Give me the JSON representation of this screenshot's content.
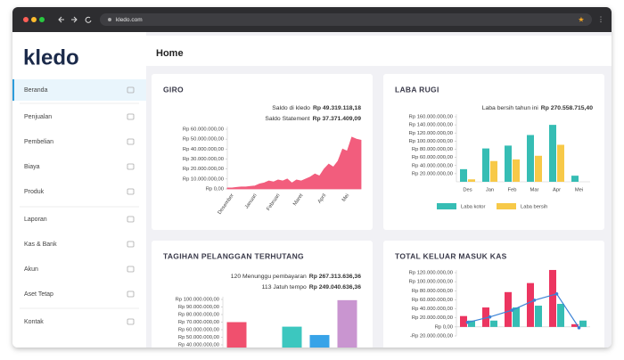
{
  "browser": {
    "url": "kledo.com"
  },
  "sidebar": {
    "logo": "kledo",
    "items": [
      "Beranda",
      "Penjualan",
      "Pembelian",
      "Biaya",
      "Produk",
      "Laporan",
      "Kas & Bank",
      "Akun",
      "Aset Tetap",
      "Kontak"
    ]
  },
  "header": {
    "title": "Home"
  },
  "cards": [
    {
      "title": "GIRO",
      "summary": [
        {
          "label": "Saldo di kledo",
          "value": "Rp 49.319.118,18"
        },
        {
          "label": "Saldo Statement",
          "value": "Rp 37.371.409,09"
        }
      ],
      "chart": {
        "type": "area",
        "color": "#f25d7d",
        "categories": [
          "Desember",
          null,
          null,
          null,
          null,
          "Januari",
          null,
          null,
          null,
          null,
          "Februari",
          null,
          null,
          null,
          null,
          "Maret",
          null,
          null,
          null,
          null,
          "April",
          null,
          null,
          null,
          null,
          "Mei",
          null,
          null,
          null,
          null
        ],
        "values": [
          1000000,
          1000000,
          1500000,
          2000000,
          2000000,
          2500000,
          3000000,
          5000000,
          6000000,
          8000000,
          7000000,
          9000000,
          8000000,
          10000000,
          6000000,
          9000000,
          8000000,
          10000000,
          12000000,
          15000000,
          13000000,
          20000000,
          25000000,
          22000000,
          28000000,
          40000000,
          38000000,
          52000000,
          50000000,
          49000000
        ],
        "ylim": [
          0,
          60000000
        ],
        "yticks": [
          {
            "value": 0,
            "label": "Rp 0,00"
          },
          {
            "value": 10000000,
            "label": "Rp 10.000.000,00"
          },
          {
            "value": 20000000,
            "label": "Rp 20.000.000,00"
          },
          {
            "value": 30000000,
            "label": "Rp 30.000.000,00"
          },
          {
            "value": 40000000,
            "label": "Rp 40.000.000,00"
          },
          {
            "value": 50000000,
            "label": "Rp 50.000.000,00"
          },
          {
            "value": 60000000,
            "label": "Rp 60.000.000,00"
          }
        ]
      }
    },
    {
      "title": "LABA RUGI",
      "summary": [
        {
          "label": "Laba bersih tahun ini",
          "value": "Rp 270.558.715,40"
        }
      ],
      "chart": {
        "type": "bar",
        "legend": "bottom",
        "categories": [
          "Des",
          "Jan",
          "Feb",
          "Mar",
          "Apr",
          "Mei"
        ],
        "series": [
          {
            "name": "Laba kotor",
            "color": "#36bdb4",
            "values": [
              31000000,
              82000000,
              89000000,
              115000000,
              140000000,
              15000000
            ]
          },
          {
            "name": "Laba bersih",
            "color": "#f7c948",
            "values": [
              6000000,
              51000000,
              55000000,
              64000000,
              91000000,
              0
            ]
          }
        ],
        "ylim": [
          0,
          160000000
        ],
        "yticks": [
          {
            "value": 20000000,
            "label": "Rp 20.000.000,00"
          },
          {
            "value": 40000000,
            "label": "Rp 40.000.000,00"
          },
          {
            "value": 60000000,
            "label": "Rp 60.000.000,00"
          },
          {
            "value": 80000000,
            "label": "Rp 80.000.000,00"
          },
          {
            "value": 100000000,
            "label": "Rp 100.000.000,00"
          },
          {
            "value": 120000000,
            "label": "Rp 120.000.000,00"
          },
          {
            "value": 140000000,
            "label": "Rp 140.000.000,00"
          },
          {
            "value": 160000000,
            "label": "Rp 160.000.000,00"
          }
        ]
      }
    },
    {
      "title": "TAGIHAN PELANGGAN TERHUTANG",
      "summary": [
        {
          "label": "120 Menunggu pembayaran",
          "value": "Rp 267.313.636,36"
        },
        {
          "label": "113 Jatuh tempo",
          "value": "Rp 249.040.636,36"
        }
      ],
      "chart": {
        "type": "bar",
        "values": [
          70000000,
          null,
          64000000,
          53000000,
          99000000
        ],
        "colors": [
          "#f0506e",
          null,
          "#3cc7bf",
          "#38a3e8",
          "#c995d0"
        ],
        "ylim": [
          0,
          100000000
        ],
        "yticks": [
          {
            "value": 40000000,
            "label": "Rp 40.000.000,00"
          },
          {
            "value": 50000000,
            "label": "Rp 50.000.000,00"
          },
          {
            "value": 60000000,
            "label": "Rp 60.000.000,00"
          },
          {
            "value": 70000000,
            "label": "Rp 70.000.000,00"
          },
          {
            "value": 80000000,
            "label": "Rp 80.000.000,00"
          },
          {
            "value": 90000000,
            "label": "Rp 90.000.000,00"
          },
          {
            "value": 100000000,
            "label": "Rp 100.000.000,00"
          }
        ]
      }
    },
    {
      "title": "TOTAL KELUAR MASUK KAS",
      "chart": {
        "type": "combo",
        "series": [
          {
            "type": "bar",
            "color": "#ec3560",
            "values": [
              24000000,
              43000000,
              77000000,
              97000000,
              126000000,
              6000000
            ]
          },
          {
            "type": "bar",
            "color": "#36bdb4",
            "values": [
              14000000,
              14000000,
              43000000,
              47000000,
              51000000,
              14000000
            ]
          },
          {
            "type": "line",
            "color": "#3b82d6",
            "values": [
              10000000,
              22000000,
              37000000,
              59000000,
              73000000,
              -2000000
            ]
          }
        ],
        "ylim": [
          -20000000,
          120000000
        ],
        "yticks": [
          {
            "value": -20000000,
            "label": "-Rp 20.000.000,00"
          },
          {
            "value": 0,
            "label": "Rp 0,00"
          },
          {
            "value": 20000000,
            "label": "Rp 20.000.000,00"
          },
          {
            "value": 40000000,
            "label": "Rp 40.000.000,00"
          },
          {
            "value": 60000000,
            "label": "Rp 60.000.000,00"
          },
          {
            "value": 80000000,
            "label": "Rp 80.000.000,00"
          },
          {
            "value": 100000000,
            "label": "Rp 100.000.000,00"
          },
          {
            "value": 120000000,
            "label": "Rp 120.000.000,00"
          }
        ]
      }
    }
  ]
}
